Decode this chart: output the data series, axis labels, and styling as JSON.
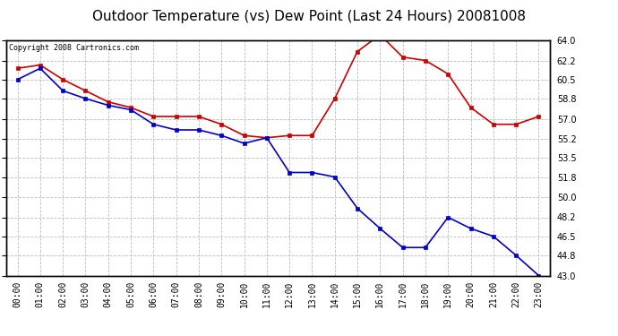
{
  "title": "Outdoor Temperature (vs) Dew Point (Last 24 Hours) 20081008",
  "copyright_text": "Copyright 2008 Cartronics.com",
  "x_labels": [
    "00:00",
    "01:00",
    "02:00",
    "03:00",
    "04:00",
    "05:00",
    "06:00",
    "07:00",
    "08:00",
    "09:00",
    "10:00",
    "11:00",
    "12:00",
    "13:00",
    "14:00",
    "15:00",
    "16:00",
    "17:00",
    "18:00",
    "19:00",
    "20:00",
    "21:00",
    "22:00",
    "23:00"
  ],
  "temp_data": [
    61.5,
    61.8,
    60.5,
    59.5,
    58.5,
    58.0,
    57.2,
    57.2,
    57.2,
    56.5,
    55.5,
    55.3,
    55.5,
    55.5,
    58.8,
    63.0,
    64.5,
    62.5,
    62.2,
    61.0,
    58.0,
    56.5,
    56.5,
    57.2
  ],
  "dew_data": [
    60.5,
    61.5,
    59.5,
    58.8,
    58.2,
    57.8,
    56.5,
    56.0,
    56.0,
    55.5,
    54.8,
    55.3,
    52.2,
    52.2,
    51.8,
    49.0,
    47.2,
    45.5,
    45.5,
    48.2,
    47.2,
    46.5,
    44.8,
    43.0
  ],
  "temp_color": "#cc0000",
  "dew_color": "#0000cc",
  "y_min": 43.0,
  "y_max": 64.0,
  "y_ticks": [
    43.0,
    44.8,
    46.5,
    48.2,
    50.0,
    51.8,
    53.5,
    55.2,
    57.0,
    58.8,
    60.5,
    62.2,
    64.0
  ],
  "background_color": "#ffffff",
  "plot_bg_color": "#ffffff",
  "grid_color": "#bbbbbb",
  "title_fontsize": 11,
  "tick_fontsize": 7,
  "copyright_fontsize": 6,
  "marker": "s",
  "marker_size": 2.5,
  "linewidth": 1.2,
  "fig_width": 6.9,
  "fig_height": 3.75,
  "dpi": 100
}
